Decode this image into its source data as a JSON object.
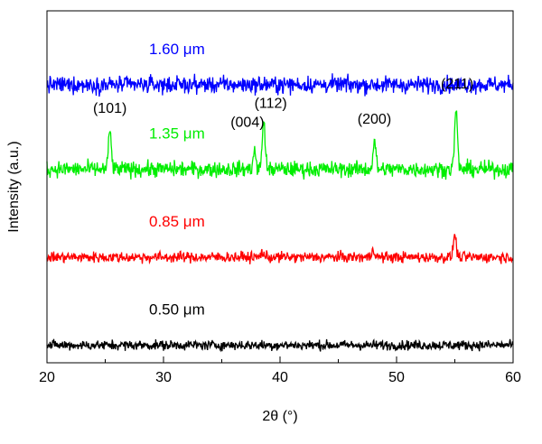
{
  "chart_data": {
    "type": "line",
    "xlabel": "2θ (°)",
    "ylabel": "Intensity (a.u.)",
    "xlim": [
      20,
      60
    ],
    "ylim": [
      0,
      100
    ],
    "x_ticks": [
      "20",
      "30",
      "40",
      "50",
      "60"
    ],
    "grid": false,
    "series": [
      {
        "name": "1.60 μm",
        "color": "#0000ff",
        "baseline": 79,
        "noise": 1.7,
        "peaks": []
      },
      {
        "name": "1.35 μm",
        "color": "#00ee00",
        "baseline": 55,
        "noise": 1.6,
        "peaks": [
          {
            "x": 25.4,
            "height": 11
          },
          {
            "x": 37.8,
            "height": 5
          },
          {
            "x": 38.6,
            "height": 14
          },
          {
            "x": 48.1,
            "height": 8
          },
          {
            "x": 55.1,
            "height": 17
          }
        ]
      },
      {
        "name": "0.85 μm",
        "color": "#ff0000",
        "baseline": 30,
        "noise": 1.1,
        "peaks": [
          {
            "x": 38.5,
            "height": 1.5
          },
          {
            "x": 48.0,
            "height": 2.5
          },
          {
            "x": 55.0,
            "height": 6.5
          }
        ]
      },
      {
        "name": "0.50 μm",
        "color": "#000000",
        "baseline": 5,
        "noise": 1.0,
        "peaks": []
      }
    ],
    "annotations": [
      {
        "text": "(101)",
        "x": 25.4,
        "y": 71
      },
      {
        "text": "(004)",
        "x": 37.2,
        "y": 67
      },
      {
        "text": "(112)",
        "x": 39.2,
        "y": 72.5
      },
      {
        "text": "(200)",
        "x": 48.1,
        "y": 68
      },
      {
        "text": "(211)",
        "x": 55.2,
        "y": 78
      }
    ]
  }
}
